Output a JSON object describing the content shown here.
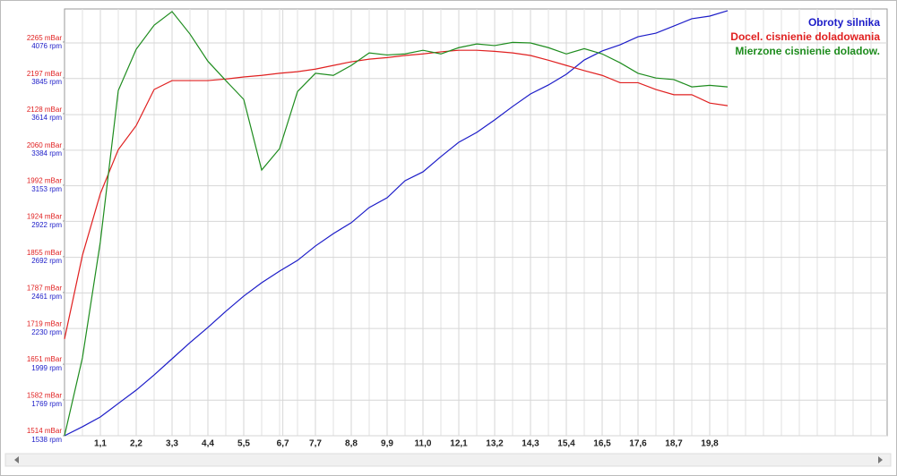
{
  "chart_data": {
    "type": "line",
    "x": [
      0,
      0.55,
      1.1,
      1.65,
      2.2,
      2.75,
      3.3,
      3.85,
      4.4,
      4.95,
      5.5,
      6.05,
      6.6,
      7.15,
      7.7,
      8.25,
      8.8,
      9.35,
      9.9,
      10.45,
      11,
      11.55,
      12.1,
      12.65,
      13.2,
      13.75,
      14.3,
      14.85,
      15.4,
      15.95,
      16.5,
      17.05,
      17.6,
      18.15,
      18.7,
      19.25,
      19.8,
      20.35
    ],
    "series": [
      {
        "name": "Obroty silnika",
        "color": "#1c1cc8",
        "axis": "y2",
        "values": [
          1538,
          1596,
          1659,
          1746,
          1832,
          1930,
          2034,
          2138,
          2236,
          2340,
          2438,
          2524,
          2599,
          2668,
          2761,
          2841,
          2911,
          3009,
          3072,
          3182,
          3239,
          3337,
          3430,
          3493,
          3574,
          3660,
          3741,
          3799,
          3868,
          3960,
          4018,
          4058,
          4110,
          4133,
          4179,
          4226,
          4243,
          4278
        ]
      },
      {
        "name": "Docel. cisnienie doladowania",
        "color": "#e02020",
        "values": [
          1699,
          1859,
          1977,
          2061,
          2107,
          2176,
          2193,
          2193,
          2193,
          2196,
          2200,
          2203,
          2207,
          2210,
          2215,
          2222,
          2229,
          2234,
          2237,
          2241,
          2244,
          2248,
          2251,
          2251,
          2249,
          2246,
          2241,
          2232,
          2222,
          2212,
          2203,
          2189,
          2189,
          2176,
          2166,
          2166,
          2150,
          2145
        ]
      },
      {
        "name": "Mierzone cisnienie doladow.",
        "color": "#1e8c1e",
        "values": [
          1514,
          1663,
          1885,
          2174,
          2253,
          2299,
          2325,
          2282,
          2230,
          2193,
          2157,
          2022,
          2063,
          2172,
          2207,
          2203,
          2222,
          2246,
          2242,
          2244,
          2251,
          2244,
          2256,
          2263,
          2260,
          2266,
          2265,
          2256,
          2244,
          2254,
          2244,
          2227,
          2207,
          2198,
          2195,
          2181,
          2184,
          2181
        ]
      }
    ],
    "xlim": [
      0,
      25.245
    ],
    "xticks": [
      {
        "value": 1.1,
        "label": "1,1"
      },
      {
        "value": 2.2,
        "label": "2,2"
      },
      {
        "value": 3.3,
        "label": "3,3"
      },
      {
        "value": 4.4,
        "label": "4,4"
      },
      {
        "value": 5.5,
        "label": "5,5"
      },
      {
        "value": 6.7,
        "label": "6,7"
      },
      {
        "value": 7.7,
        "label": "7,7"
      },
      {
        "value": 8.8,
        "label": "8,8"
      },
      {
        "value": 9.9,
        "label": "9,9"
      },
      {
        "value": 11.0,
        "label": "11,0"
      },
      {
        "value": 12.1,
        "label": "12,1"
      },
      {
        "value": 13.2,
        "label": "13,2"
      },
      {
        "value": 14.3,
        "label": "14,3"
      },
      {
        "value": 15.4,
        "label": "15,4"
      },
      {
        "value": 16.5,
        "label": "16,5"
      },
      {
        "value": 17.6,
        "label": "17,6"
      },
      {
        "value": 18.7,
        "label": "18,7"
      },
      {
        "value": 19.8,
        "label": "19,8"
      }
    ],
    "ylim": [
      1514,
      2330
    ],
    "yticks": [
      {
        "value": 1514,
        "label": "1514 mBar"
      },
      {
        "value": 1582,
        "label": "1582 mBar"
      },
      {
        "value": 1651,
        "label": "1651 mBar"
      },
      {
        "value": 1719,
        "label": "1719 mBar"
      },
      {
        "value": 1787,
        "label": "1787 mBar"
      },
      {
        "value": 1855,
        "label": "1855 mBar"
      },
      {
        "value": 1924,
        "label": "1924 mBar"
      },
      {
        "value": 1992,
        "label": "1992 mBar"
      },
      {
        "value": 2060,
        "label": "2060 mBar"
      },
      {
        "value": 2128,
        "label": "2128 mBar"
      },
      {
        "value": 2197,
        "label": "2197 mBar"
      },
      {
        "value": 2265,
        "label": "2265 mBar"
      }
    ],
    "y2lim": [
      1538,
      4289
    ],
    "y2ticks": [
      {
        "value": 1538,
        "label": "1538 rpm"
      },
      {
        "value": 1769,
        "label": "1769 rpm"
      },
      {
        "value": 1999,
        "label": "1999 rpm"
      },
      {
        "value": 2230,
        "label": "2230 rpm"
      },
      {
        "value": 2461,
        "label": "2461 rpm"
      },
      {
        "value": 2692,
        "label": "2692 rpm"
      },
      {
        "value": 2922,
        "label": "2922 rpm"
      },
      {
        "value": 3153,
        "label": "3153 rpm"
      },
      {
        "value": 3384,
        "label": "3384 rpm"
      },
      {
        "value": 3614,
        "label": "3614 rpm"
      },
      {
        "value": 3845,
        "label": "3845 rpm"
      },
      {
        "value": 4076,
        "label": "4076 rpm"
      }
    ],
    "ytick_color": "#e02020",
    "y2tick_color": "#1c1cc8",
    "grid": true,
    "legend": "top-right"
  }
}
